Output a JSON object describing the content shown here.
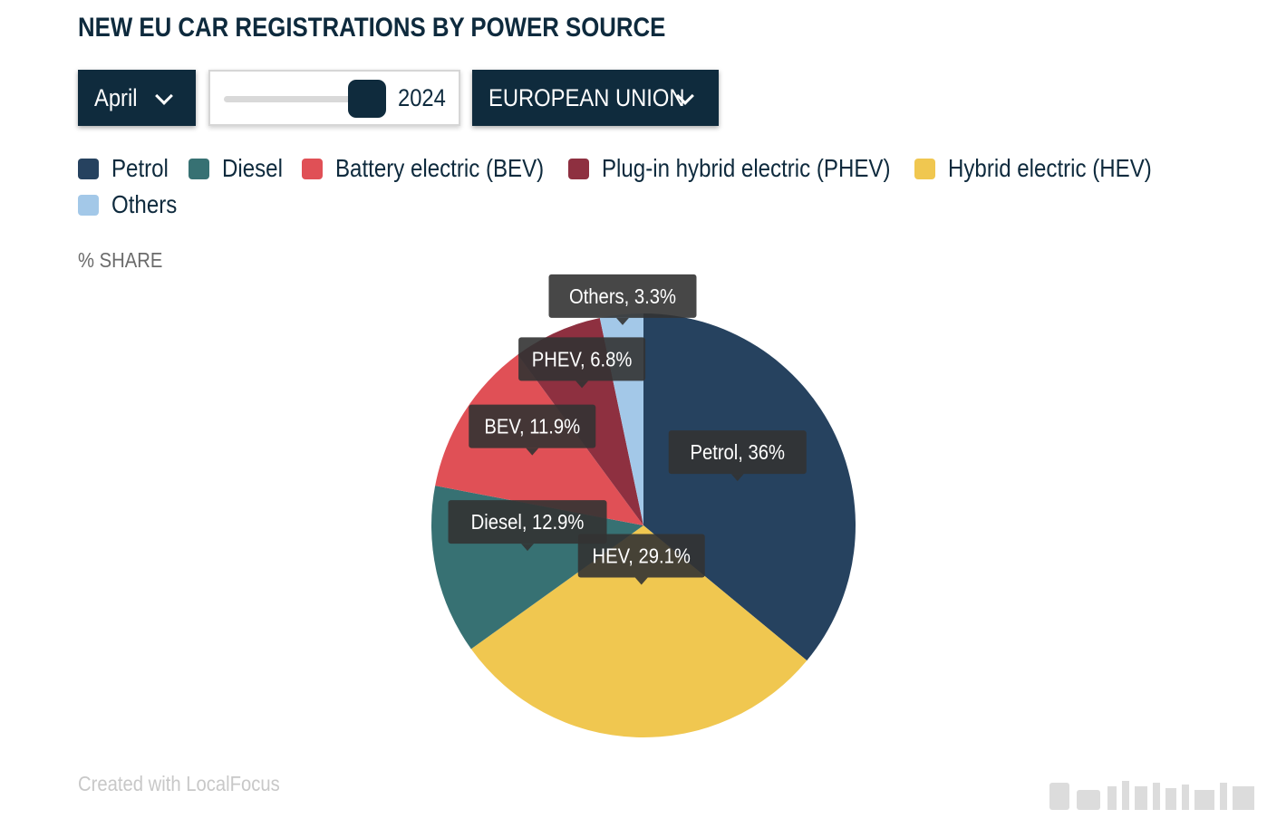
{
  "header": {
    "title": "NEW EU CAR REGISTRATIONS BY POWER SOURCE"
  },
  "controls": {
    "month": "April",
    "year": "2024",
    "region": "EUROPEAN UNION"
  },
  "axis": {
    "unit_label": "% SHARE"
  },
  "footer": {
    "credit": "Created with LocalFocus"
  },
  "colors": {
    "title": "#0e2a3d",
    "control_bg": "#0f2b3d",
    "tooltip_bg": "#333333"
  },
  "chart_data": {
    "type": "pie",
    "title": "NEW EU CAR REGISTRATIONS BY POWER SOURCE",
    "unit": "% SHARE",
    "legend_position": "top",
    "series": [
      {
        "name": "Petrol",
        "short": "Petrol",
        "value": 36,
        "color": "#26425f"
      },
      {
        "name": "Hybrid electric (HEV)",
        "short": "HEV",
        "value": 29.1,
        "color": "#f0c750"
      },
      {
        "name": "Diesel",
        "short": "Diesel",
        "value": 12.9,
        "color": "#377173"
      },
      {
        "name": "Battery electric (BEV)",
        "short": "BEV",
        "value": 11.9,
        "color": "#e05056"
      },
      {
        "name": "Plug-in hybrid electric (PHEV)",
        "short": "PHEV",
        "value": 6.8,
        "color": "#8e3040"
      },
      {
        "name": "Others",
        "short": "Others",
        "value": 3.3,
        "color": "#a3c8e8"
      }
    ],
    "legend_order": [
      "Petrol",
      "Diesel",
      "Battery electric (BEV)",
      "Plug-in hybrid electric (PHEV)",
      "Hybrid electric (HEV)",
      "Others"
    ],
    "data_labels": [
      "Petrol, 36%",
      "HEV, 29.1%",
      "Diesel, 12.9%",
      "BEV, 11.9%",
      "PHEV, 6.8%",
      "Others, 3.3%"
    ]
  }
}
